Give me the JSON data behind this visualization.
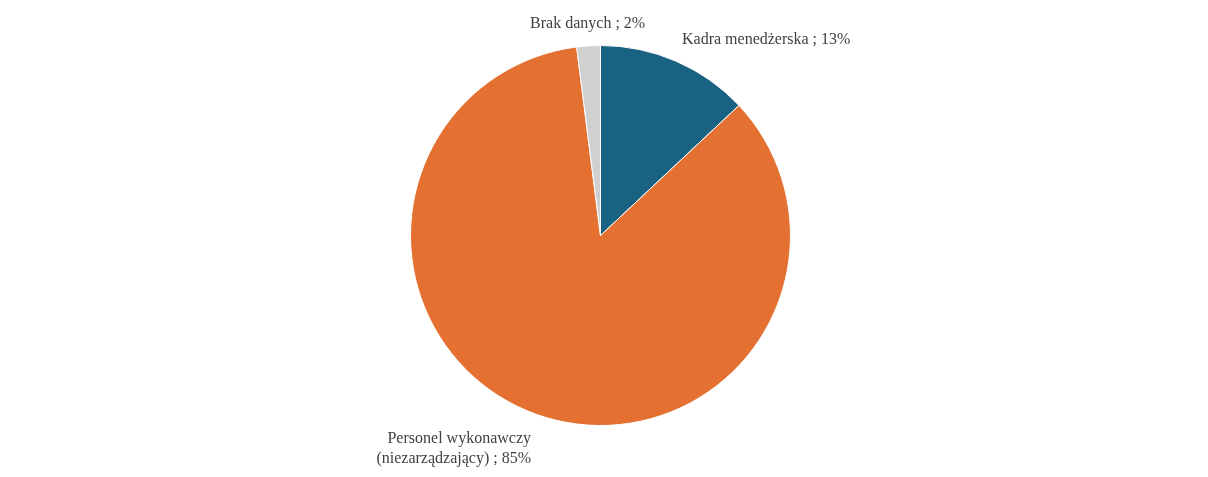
{
  "chart_data": {
    "type": "pie",
    "categories": [
      "Kadra menedżerska",
      "Personel wykonawczy (niezarządzający)",
      "Brak danych"
    ],
    "values": [
      13,
      85,
      2
    ],
    "colors": [
      "#1a6282",
      "#e47032",
      "#d0d0d0"
    ],
    "value_labels": [
      "13%",
      "85%",
      "2%"
    ]
  }
}
